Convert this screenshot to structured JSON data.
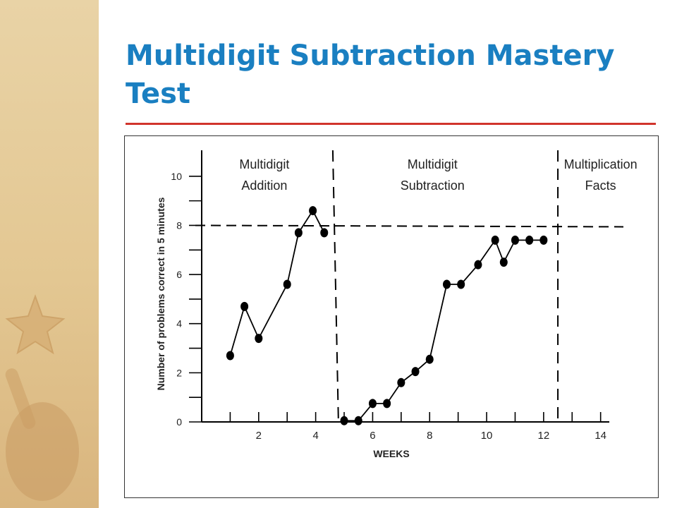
{
  "slide": {
    "title": "Multidigit Subtraction Mastery Test"
  },
  "colors": {
    "title": "#1a7fc1",
    "rule": "#d1342c",
    "sidebar": "#e3c792",
    "ink": "#000000"
  },
  "chart_data": {
    "type": "line",
    "title": "",
    "xlabel": "WEEKS",
    "ylabel": "Number of problems correct in 5 minutes",
    "xlim": [
      0,
      14.8
    ],
    "ylim": [
      0,
      11
    ],
    "x_ticks": [
      2,
      4,
      6,
      8,
      10,
      12,
      14
    ],
    "y_tick_labels": [
      0,
      2,
      4,
      6,
      8,
      10
    ],
    "y_tick_marks": [
      0,
      1,
      2,
      3,
      4,
      5,
      6,
      7,
      8,
      9,
      10
    ],
    "aim_line_y": 8,
    "phase_lines_x": [
      4.7,
      12.5
    ],
    "phases": [
      {
        "label_line1": "Multidigit",
        "label_line2": "Addition"
      },
      {
        "label_line1": "Multidigit",
        "label_line2": "Subtraction"
      },
      {
        "label_line1": "Multiplication",
        "label_line2": "Facts"
      }
    ],
    "grid": false,
    "series": [
      {
        "phase": "addition",
        "points": [
          [
            1.0,
            2.7
          ],
          [
            1.5,
            4.7
          ],
          [
            2.0,
            3.4
          ],
          [
            3.0,
            5.6
          ],
          [
            3.4,
            7.7
          ],
          [
            3.9,
            8.6
          ],
          [
            4.3,
            7.7
          ]
        ]
      },
      {
        "phase": "subtraction",
        "points": [
          [
            5.0,
            0.05
          ],
          [
            5.5,
            0.05
          ],
          [
            6.0,
            0.75
          ],
          [
            6.5,
            0.75
          ],
          [
            7.0,
            1.6
          ],
          [
            7.5,
            2.05
          ],
          [
            8.0,
            2.55
          ],
          [
            8.6,
            5.6
          ],
          [
            9.1,
            5.6
          ],
          [
            9.7,
            6.4
          ],
          [
            10.3,
            7.4
          ],
          [
            10.6,
            6.5
          ],
          [
            11.0,
            7.4
          ],
          [
            11.5,
            7.4
          ],
          [
            12.0,
            7.4
          ]
        ]
      }
    ]
  }
}
